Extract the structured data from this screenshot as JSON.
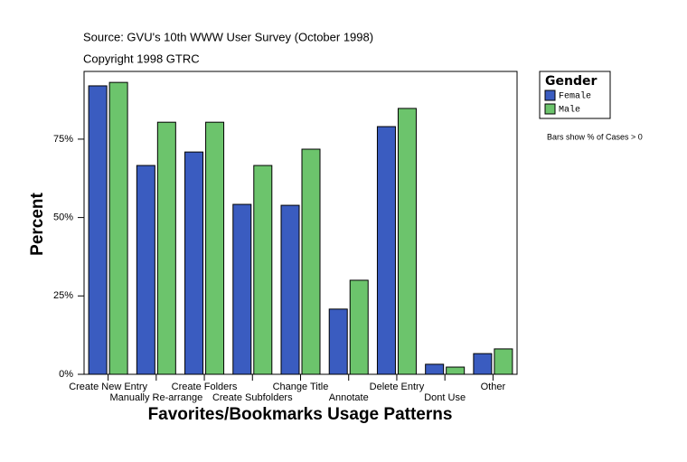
{
  "chart_data": {
    "type": "bar",
    "source": "Source: GVU's 10th WWW User Survey (October 1998)",
    "copyright": "Copyright 1998 GTRC",
    "note": "Bars show % of Cases > 0",
    "x_label": "Favorites/Bookmarks Usage Patterns",
    "y_label": "Percent",
    "legend_title": "Gender",
    "categories": [
      "Create New Entry",
      "Manually Re-arrange",
      "Create Folders",
      "Create Subfolders",
      "Change Title",
      "Annotate",
      "Delete Entry",
      "Dont Use",
      "Other"
    ],
    "series": [
      {
        "name": "Female",
        "color": "#3a5cc0",
        "values": [
          92.0,
          66.6,
          70.9,
          54.2,
          53.9,
          20.8,
          79.0,
          3.2,
          6.6
        ]
      },
      {
        "name": "Male",
        "color": "#6cc46c",
        "values": [
          93.1,
          80.4,
          80.4,
          66.6,
          71.8,
          30.0,
          84.8,
          2.3,
          8.1
        ]
      }
    ],
    "ylim": [
      0,
      96.6
    ],
    "yticks": [
      {
        "value": 0,
        "label": "0%"
      },
      {
        "value": 25,
        "label": "25%"
      },
      {
        "value": 50,
        "label": "50%"
      },
      {
        "value": 75,
        "label": "75%"
      }
    ]
  }
}
